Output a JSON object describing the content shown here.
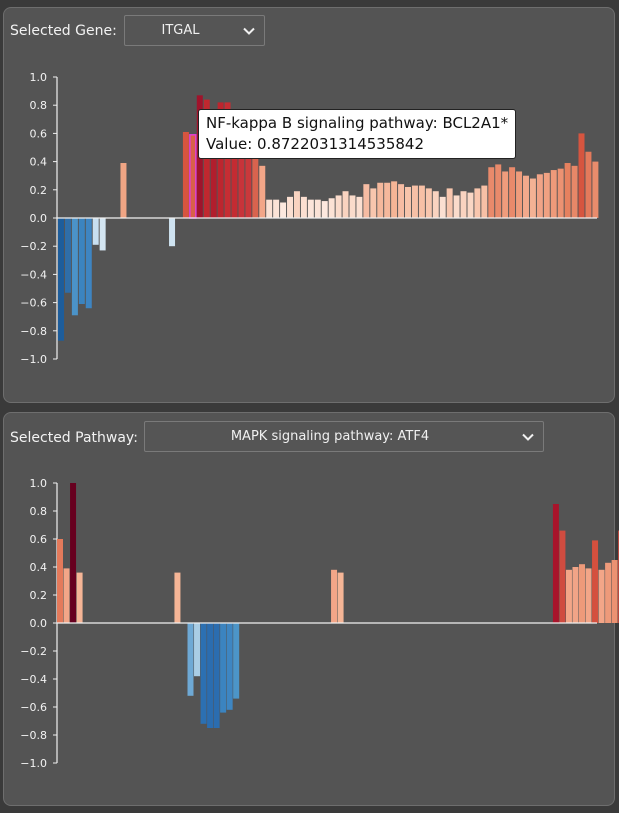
{
  "gene_panel": {
    "label": "Selected Gene:",
    "selected": "ITGAL"
  },
  "pathway_panel": {
    "label": "Selected Pathway:",
    "selected": "MAPK signaling pathway: ATF4"
  },
  "tooltip": {
    "line1": "NF-kappa B signaling pathway: BCL2A1*",
    "line2": "Value: 0.8722031314535842"
  },
  "icons": {
    "dropdown": "chevron-down-icon"
  },
  "chart_data": [
    {
      "type": "bar",
      "ylim": [
        -1,
        1
      ],
      "yticks": [
        "1.0",
        "0.8",
        "0.6",
        "0.4",
        "0.2",
        "0.0",
        "−0.2",
        "−0.4",
        "−0.6",
        "−0.8",
        "−1.0"
      ],
      "highlight_index": 19,
      "values": [
        -0.87,
        -0.53,
        -0.69,
        -0.61,
        -0.64,
        -0.19,
        -0.23,
        null,
        null,
        0.39,
        null,
        null,
        null,
        null,
        null,
        null,
        -0.2,
        null,
        0.61,
        0.59,
        0.87,
        0.84,
        0.76,
        0.82,
        0.82,
        0.74,
        0.76,
        0.72,
        0.47,
        0.37,
        0.13,
        0.13,
        0.11,
        0.15,
        0.19,
        0.15,
        0.13,
        0.13,
        0.12,
        0.14,
        0.16,
        0.19,
        0.16,
        0.15,
        0.24,
        0.21,
        0.25,
        0.25,
        0.26,
        0.24,
        0.22,
        0.23,
        0.23,
        0.21,
        0.19,
        0.15,
        0.21,
        0.16,
        0.19,
        0.18,
        0.21,
        0.23,
        0.36,
        0.38,
        0.33,
        0.36,
        0.33,
        0.3,
        0.28,
        0.31,
        0.32,
        0.34,
        0.35,
        0.39,
        0.37,
        0.6,
        0.47,
        0.4
      ],
      "colors": [
        "#1d5d9b",
        "#2f6ea8",
        "#4b93c8",
        "#3b84c0",
        "#3e85c2",
        "#c8dff0",
        "#d4e6f2",
        null,
        null,
        "#f0a584",
        null,
        null,
        null,
        null,
        null,
        null,
        "#cfe3f1",
        null,
        "#d6553f",
        "#d8604a",
        "#a0132b",
        "#c0282f",
        "#b11e2d",
        "#bd252e",
        "#c62d33",
        "#c42b32",
        "#c8333a",
        "#ca383b",
        "#d9634e",
        "#f3a688",
        "#fbe1d4",
        "#fbe3d7",
        "#fde9df",
        "#fbdfd1",
        "#f9d3c0",
        "#fbdfd1",
        "#fce5da",
        "#fbe3d7",
        "#fde8de",
        "#fbe2d5",
        "#fadbcb",
        "#f9d3c0",
        "#fadbcb",
        "#fbdfd1",
        "#f6bca3",
        "#f8c6ae",
        "#f5b89c",
        "#f5b89c",
        "#f5b596",
        "#f6bca3",
        "#f7c4ab",
        "#f7c0a6",
        "#f7c0a6",
        "#f8c6ae",
        "#f9d3c0",
        "#fbdfd1",
        "#f8c6ae",
        "#fadbcb",
        "#f9d3c0",
        "#f9d6c4",
        "#f8c6ae",
        "#f7c0a6",
        "#e98a6b",
        "#e98a6b",
        "#ef9c7c",
        "#e98a6b",
        "#ef9c7c",
        "#f2a98c",
        "#f4b294",
        "#f1a487",
        "#f0a182",
        "#ee9a7a",
        "#ec9272",
        "#e6815f",
        "#e88868",
        "#d6553f",
        "#e47a5b",
        "#e98c6c"
      ]
    },
    {
      "type": "bar",
      "ylim": [
        -1,
        1
      ],
      "yticks": [
        "1.0",
        "0.8",
        "0.6",
        "0.4",
        "0.2",
        "0.0",
        "−0.2",
        "−0.4",
        "−0.6",
        "−0.8",
        "−1.0"
      ],
      "values": [
        0.6,
        0.39,
        1.0,
        0.36,
        null,
        null,
        null,
        null,
        null,
        null,
        null,
        null,
        null,
        null,
        null,
        null,
        null,
        null,
        0.36,
        null,
        -0.52,
        -0.38,
        -0.72,
        -0.75,
        -0.75,
        -0.64,
        -0.62,
        -0.54,
        null,
        null,
        null,
        null,
        null,
        null,
        null,
        null,
        null,
        null,
        null,
        null,
        null,
        null,
        0.38,
        0.36,
        null,
        null,
        null,
        null,
        null,
        null,
        null,
        null,
        null,
        null,
        null,
        null,
        null,
        null,
        null,
        null,
        null,
        null,
        null,
        null,
        null,
        null,
        null,
        null,
        null,
        null,
        null,
        null,
        null,
        null,
        null,
        null,
        0.85,
        0.66,
        0.38,
        0.4,
        0.42,
        0.39,
        0.59,
        0.38,
        0.43,
        0.45,
        0.66
      ],
      "colors": [
        "#e47a5b",
        "#f3a688",
        "#67001f",
        "#f5b596",
        null,
        null,
        null,
        null,
        null,
        null,
        null,
        null,
        null,
        null,
        null,
        null,
        null,
        null,
        "#f5b596",
        null,
        "#6ea9d5",
        "#a9cde5",
        "#2c70b2",
        "#2b6db0",
        "#2b6db0",
        "#3b84c0",
        "#3e86c2",
        "#4c95c8",
        null,
        null,
        null,
        null,
        null,
        null,
        null,
        null,
        null,
        null,
        null,
        null,
        null,
        null,
        "#f3a688",
        "#f5b596",
        null,
        null,
        null,
        null,
        null,
        null,
        null,
        null,
        null,
        null,
        null,
        null,
        null,
        null,
        null,
        null,
        null,
        null,
        null,
        null,
        null,
        null,
        null,
        null,
        null,
        null,
        null,
        null,
        null,
        null,
        null,
        null,
        "#a8142b",
        "#d04c40",
        "#f3a688",
        "#f1a487",
        "#ee9a7a",
        "#f3a688",
        "#d4503e",
        "#f3a688",
        "#ee9a7a",
        "#ec9272",
        "#d04c40"
      ]
    }
  ]
}
